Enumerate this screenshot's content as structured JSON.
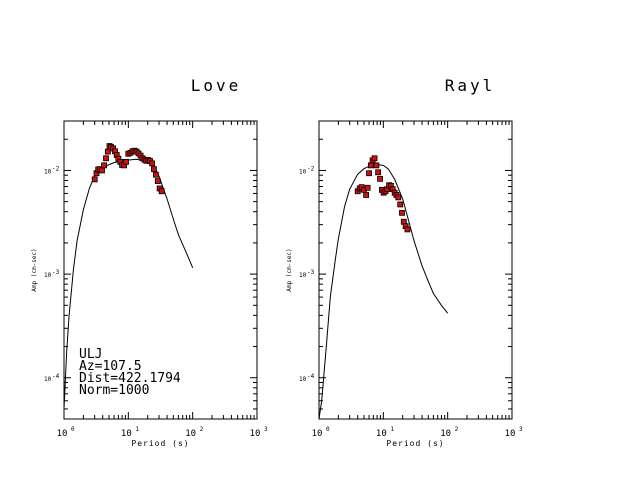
{
  "chart_data": [
    {
      "type": "scatter",
      "title": "Love",
      "xlabel": "Period (s)",
      "ylabel": "Amp (cm-sec)",
      "x_scale": "log",
      "y_scale": "log",
      "xlim": [
        1,
        1000
      ],
      "ylim": [
        4e-05,
        0.03
      ],
      "x_ticks": [
        {
          "value": 1,
          "base": "10",
          "exp": "0"
        },
        {
          "value": 10,
          "base": "10",
          "exp": "1"
        },
        {
          "value": 100,
          "base": "10",
          "exp": "2"
        },
        {
          "value": 1000,
          "base": "10",
          "exp": "3"
        }
      ],
      "y_ticks": [
        {
          "value": 0.0001,
          "base": "10",
          "exp": "-4"
        },
        {
          "value": 0.001,
          "base": "10",
          "exp": "-3"
        },
        {
          "value": 0.01,
          "base": "10",
          "exp": "-2"
        }
      ],
      "observed_color": "#cc1111",
      "series": [
        {
          "style": "line",
          "x": [
            1.0,
            1.1,
            1.2,
            1.4,
            1.6,
            2.0,
            2.5,
            3.0,
            4.0,
            5.0,
            6.0,
            8.0,
            10.0,
            13.0,
            16.0,
            20.0,
            25.0,
            30.0,
            40.0,
            50.0,
            60.0,
            80.0,
            100.0
          ],
          "y": [
            5e-05,
            0.00018,
            0.0004,
            0.0011,
            0.0021,
            0.0042,
            0.0068,
            0.0089,
            0.0106,
            0.0114,
            0.0119,
            0.0124,
            0.0126,
            0.0128,
            0.0126,
            0.0122,
            0.0112,
            0.0088,
            0.0053,
            0.0034,
            0.0024,
            0.0016,
            0.00115
          ]
        },
        {
          "style": "points",
          "x": [
            3.0,
            3.2,
            3.4,
            3.6,
            3.9,
            4.2,
            4.5,
            4.8,
            5.1,
            5.4,
            5.8,
            6.2,
            6.6,
            7.0,
            7.5,
            8.0,
            8.6,
            9.2,
            10.0,
            10.8,
            11.6,
            12.5,
            13.4,
            14.4,
            15.5,
            16.6,
            17.8,
            19.0,
            20.4,
            21.8,
            23.4,
            25.0,
            26.8,
            28.7,
            30.7,
            33.0
          ],
          "y": [
            0.0082,
            0.0094,
            0.0102,
            0.0103,
            0.01,
            0.0112,
            0.0131,
            0.0152,
            0.0172,
            0.0168,
            0.0163,
            0.0153,
            0.0141,
            0.013,
            0.0121,
            0.0113,
            0.0112,
            0.0121,
            0.0145,
            0.0148,
            0.0153,
            0.0155,
            0.0152,
            0.0146,
            0.0139,
            0.0131,
            0.0127,
            0.0124,
            0.0126,
            0.0123,
            0.0117,
            0.0103,
            0.0091,
            0.0079,
            0.0067,
            0.0063
          ]
        }
      ],
      "annotations": [
        "ULJ",
        "Az=107.5",
        "Dist=422.1794",
        "Norm=1000"
      ]
    },
    {
      "type": "scatter",
      "title": "Rayl",
      "xlabel": "Period (s)",
      "ylabel": "Amp (cm-sec)",
      "x_scale": "log",
      "y_scale": "log",
      "xlim": [
        1,
        1000
      ],
      "ylim": [
        4e-05,
        0.03
      ],
      "x_ticks": [
        {
          "value": 1,
          "base": "10",
          "exp": "0"
        },
        {
          "value": 10,
          "base": "10",
          "exp": "1"
        },
        {
          "value": 100,
          "base": "10",
          "exp": "2"
        },
        {
          "value": 1000,
          "base": "10",
          "exp": "3"
        }
      ],
      "y_ticks": [
        {
          "value": 0.0001,
          "base": "10",
          "exp": "-4"
        },
        {
          "value": 0.001,
          "base": "10",
          "exp": "-3"
        },
        {
          "value": 0.01,
          "base": "10",
          "exp": "-2"
        }
      ],
      "observed_color": "#cc1111",
      "series": [
        {
          "style": "line",
          "x": [
            1.0,
            1.1,
            1.3,
            1.5,
            1.8,
            2.0,
            2.5,
            3.0,
            4.0,
            5.0,
            6.0,
            8.0,
            10.0,
            12.0,
            15.0,
            20.0,
            25.0,
            30.0,
            40.0,
            50.0,
            60.0,
            80.0,
            100.0
          ],
          "y": [
            4e-05,
            6e-05,
            0.0002,
            0.0006,
            0.0014,
            0.0022,
            0.0045,
            0.0066,
            0.0092,
            0.0104,
            0.011,
            0.0114,
            0.0112,
            0.0103,
            0.0082,
            0.0053,
            0.0032,
            0.0021,
            0.0012,
            0.00085,
            0.00065,
            0.0005,
            0.00042
          ]
        },
        {
          "style": "points",
          "x": [
            4.0,
            4.3,
            4.6,
            5.0,
            5.4,
            5.7,
            6.0,
            6.4,
            6.8,
            7.3,
            7.8,
            8.3,
            8.9,
            9.5,
            10.1,
            10.8,
            11.5,
            12.3,
            13.1,
            14.0,
            15.0,
            16.0,
            17.1,
            18.3,
            19.5,
            20.8,
            22.2,
            23.7
          ],
          "y": [
            0.0063,
            0.0067,
            0.0069,
            0.0065,
            0.0058,
            0.0068,
            0.0094,
            0.0112,
            0.0125,
            0.0131,
            0.0112,
            0.0096,
            0.0083,
            0.0065,
            0.0061,
            0.0063,
            0.0066,
            0.0072,
            0.0071,
            0.0066,
            0.0061,
            0.0058,
            0.0055,
            0.0047,
            0.0039,
            0.0032,
            0.0029,
            0.0027
          ]
        }
      ]
    }
  ]
}
